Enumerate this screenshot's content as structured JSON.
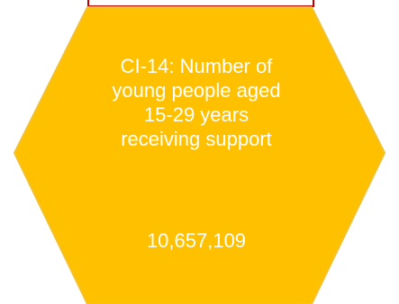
{
  "indicator": {
    "title_lines": [
      "CI-14: Number of",
      "young people aged",
      "15-29 years",
      "receiving support"
    ],
    "value": "10,657,109"
  },
  "colors": {
    "hexagon_fill": "#ffc000",
    "hexagon_border": "#f2c12e",
    "top_box_border": "#c00000",
    "text": "#ffffff"
  }
}
